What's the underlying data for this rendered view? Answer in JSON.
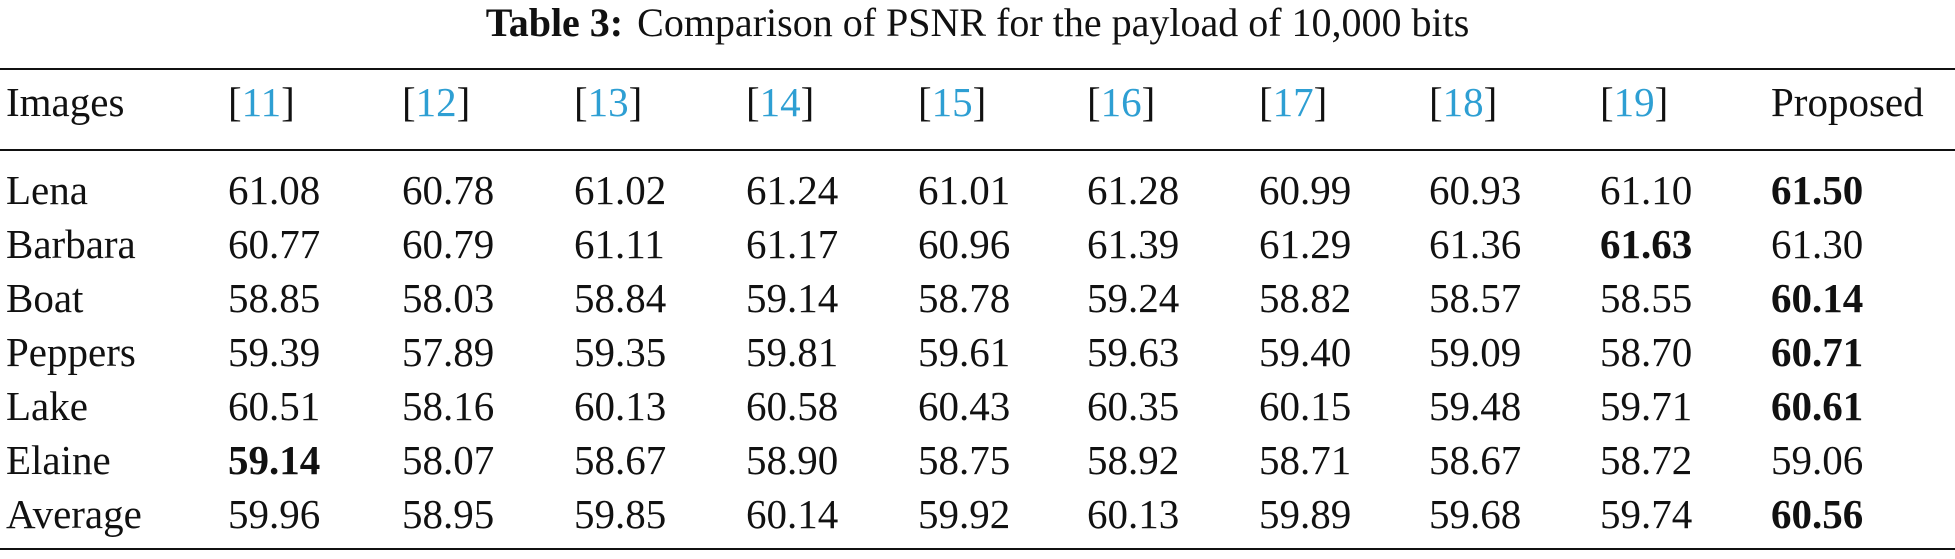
{
  "table": {
    "caption": {
      "label": "Table 3:",
      "text": "Comparison of PSNR for the payload of 10,000 bits"
    },
    "header": [
      {
        "text": "Images"
      },
      {
        "open": "[",
        "ref": "11",
        "close": "]"
      },
      {
        "open": "[",
        "ref": "12",
        "close": "]"
      },
      {
        "open": "[",
        "ref": "13",
        "close": "]"
      },
      {
        "open": "[",
        "ref": "14",
        "close": "]"
      },
      {
        "open": "[",
        "ref": "15",
        "close": "]"
      },
      {
        "open": "[",
        "ref": "16",
        "close": "]"
      },
      {
        "open": "[",
        "ref": "17",
        "close": "]"
      },
      {
        "open": "[",
        "ref": "18",
        "close": "]"
      },
      {
        "open": "[",
        "ref": "19",
        "close": "]"
      },
      {
        "text": "Proposed"
      }
    ],
    "rows": [
      {
        "image": "Lena",
        "values": [
          "61.08",
          "60.78",
          "61.02",
          "61.24",
          "61.01",
          "61.28",
          "60.99",
          "60.93",
          "61.10",
          "61.50"
        ],
        "best": 9
      },
      {
        "image": "Barbara",
        "values": [
          "60.77",
          "60.79",
          "61.11",
          "61.17",
          "60.96",
          "61.39",
          "61.29",
          "61.36",
          "61.63",
          "61.30"
        ],
        "best": 8
      },
      {
        "image": "Boat",
        "values": [
          "58.85",
          "58.03",
          "58.84",
          "59.14",
          "58.78",
          "59.24",
          "58.82",
          "58.57",
          "58.55",
          "60.14"
        ],
        "best": 9
      },
      {
        "image": "Peppers",
        "values": [
          "59.39",
          "57.89",
          "59.35",
          "59.81",
          "59.61",
          "59.63",
          "59.40",
          "59.09",
          "58.70",
          "60.71"
        ],
        "best": 9
      },
      {
        "image": "Lake",
        "values": [
          "60.51",
          "58.16",
          "60.13",
          "60.58",
          "60.43",
          "60.35",
          "60.15",
          "59.48",
          "59.71",
          "60.61"
        ],
        "best": 9
      },
      {
        "image": "Elaine",
        "values": [
          "59.14",
          "58.07",
          "58.67",
          "58.90",
          "58.75",
          "58.92",
          "58.71",
          "58.67",
          "58.72",
          "59.06"
        ],
        "best": 0
      },
      {
        "image": "Average",
        "values": [
          "59.96",
          "58.95",
          "59.85",
          "60.14",
          "59.92",
          "60.13",
          "59.89",
          "59.68",
          "59.74",
          "60.56"
        ],
        "best": 9
      }
    ]
  }
}
